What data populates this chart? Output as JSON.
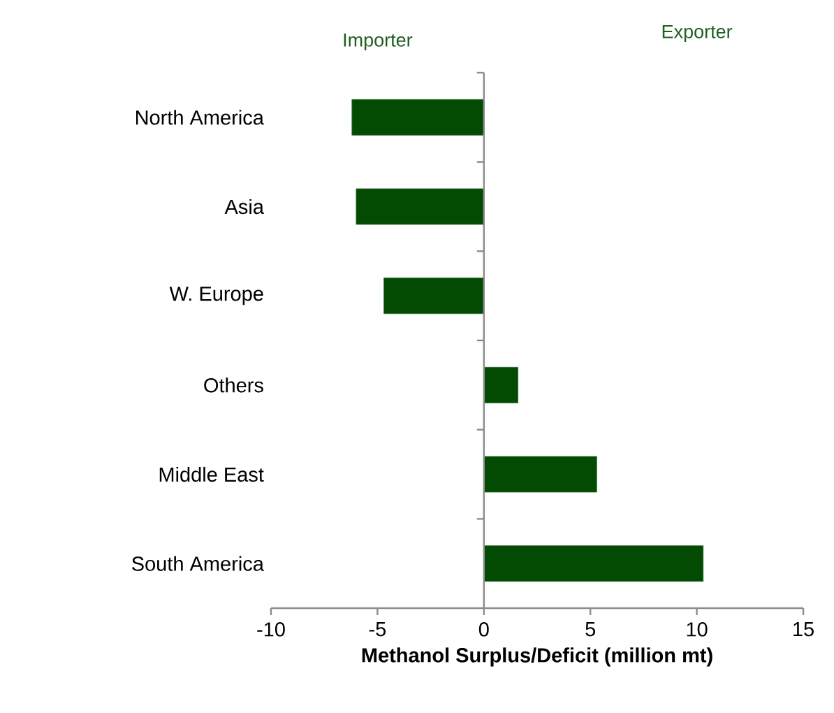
{
  "chart_data": {
    "type": "bar",
    "orientation": "horizontal",
    "xlabel": "Methanol Surplus/Deficit (million mt)",
    "annotations": [
      "Importer",
      "Exporter"
    ],
    "categories": [
      "North America",
      "Asia",
      "W. Europe",
      "Others",
      "Middle East",
      "South America"
    ],
    "values": [
      -6.2,
      -6.0,
      -4.7,
      1.6,
      5.3,
      10.3
    ],
    "color": "#034a03",
    "xlim": [
      -10,
      15
    ],
    "xticks": [
      -10,
      -5,
      0,
      5,
      10,
      15
    ]
  }
}
